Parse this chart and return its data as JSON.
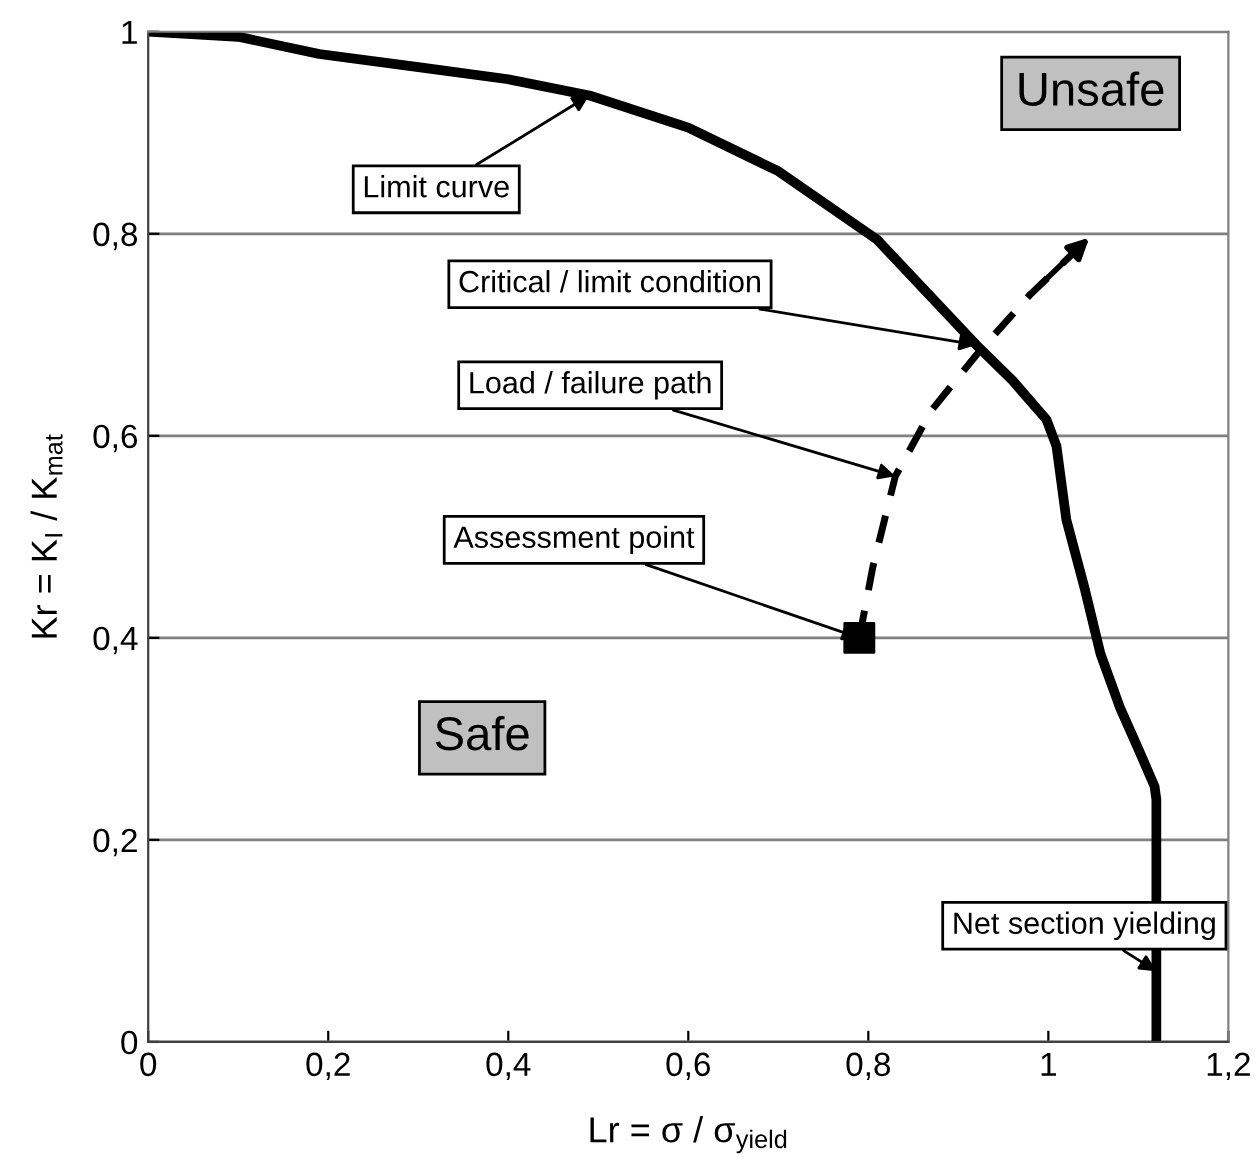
{
  "chart_data": {
    "type": "line",
    "xlabel": "Lr = σ / σ$_{yield}$",
    "ylabel": "Kr = K$_{I}$ / K$_{mat}$",
    "xlim": [
      0,
      1.2
    ],
    "ylim": [
      0,
      1
    ],
    "xticks": [
      0,
      {
        "value": 0.2,
        "label": "0,2"
      },
      {
        "value": 0.4,
        "label": "0,4"
      },
      {
        "value": 0.6,
        "label": "0,6"
      },
      {
        "value": 0.8,
        "label": "0,8"
      },
      1,
      {
        "value": 1.2,
        "label": "1,2"
      }
    ],
    "yticks": [
      0,
      {
        "value": 0.2,
        "label": "0,2"
      },
      {
        "value": 0.4,
        "label": "0,4"
      },
      {
        "value": 0.6,
        "label": "0,6"
      },
      {
        "value": 0.8,
        "label": "0,8"
      },
      1
    ],
    "grid": "y",
    "series": [
      {
        "color": "#000000",
        "line_style": "solid",
        "x": [
          0,
          0.1,
          0.19,
          0.3,
          0.4,
          0.49,
          0.6,
          0.7,
          0.81,
          0.92,
          0.96,
          0.998,
          1.009,
          1.02,
          1.04,
          1.058,
          1.08,
          1.1,
          1.118,
          1.12,
          1.12
        ],
        "values": [
          1,
          0.995,
          0.978,
          0.965,
          0.953,
          0.937,
          0.905,
          0.862,
          0.794,
          0.69,
          0.655,
          0.616,
          0.59,
          0.517,
          0.45,
          0.384,
          0.33,
          0.29,
          0.253,
          0.24,
          0
        ]
      },
      {
        "color": "#000000",
        "line_style": "dashed",
        "x": [
          0.79,
          0.805,
          0.83,
          0.87,
          0.92,
          0.98,
          1.05
        ],
        "values": [
          0.4,
          0.47,
          0.56,
          0.625,
          0.68,
          0.74,
          0.8
        ]
      },
      {
        "type": "scatter",
        "color": "#000000",
        "marker": "square",
        "x": [
          0.79
        ],
        "values": [
          0.4
        ]
      }
    ],
    "annotations": [
      {
        "text": "Limit curve",
        "x": 0.49,
        "y": 0.937
      },
      {
        "text": "Critical / limit condition",
        "x": 0.92,
        "y": 0.69
      },
      {
        "text": "Load / failure path",
        "x": 0.83,
        "y": 0.56
      },
      {
        "text": "Assessment point",
        "x": 0.79,
        "y": 0.4
      },
      {
        "text": "Net section yielding",
        "x": 1.12,
        "y": 0.07
      },
      "Unsafe",
      "Safe"
    ]
  }
}
